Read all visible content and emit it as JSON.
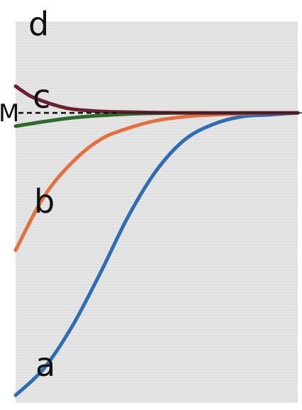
{
  "chart_data": {
    "type": "line",
    "x_range": [
      0,
      10
    ],
    "y_range": [
      0,
      10
    ],
    "asymptote": {
      "label": "M",
      "value": 7.6,
      "style": "dashed"
    },
    "series": [
      {
        "name": "a",
        "color": "#2f6db3",
        "points": [
          [
            0,
            0.2
          ],
          [
            1,
            0.9
          ],
          [
            2,
            2.0
          ],
          [
            3,
            3.4
          ],
          [
            4,
            4.9
          ],
          [
            5,
            6.1
          ],
          [
            6,
            6.9
          ],
          [
            7,
            7.3
          ],
          [
            8,
            7.5
          ],
          [
            9,
            7.55
          ],
          [
            10,
            7.6
          ]
        ]
      },
      {
        "name": "b",
        "color": "#e4703f",
        "points": [
          [
            0,
            4.0
          ],
          [
            1,
            5.4
          ],
          [
            2,
            6.3
          ],
          [
            3,
            6.9
          ],
          [
            4,
            7.2
          ],
          [
            5,
            7.4
          ],
          [
            6,
            7.5
          ],
          [
            7,
            7.55
          ],
          [
            8,
            7.58
          ],
          [
            9,
            7.6
          ],
          [
            10,
            7.6
          ]
        ]
      },
      {
        "name": "c",
        "color": "#2e6b2a",
        "points": [
          [
            0,
            7.25
          ],
          [
            1,
            7.37
          ],
          [
            2,
            7.47
          ],
          [
            3,
            7.53
          ],
          [
            4,
            7.57
          ],
          [
            5,
            7.59
          ],
          [
            6,
            7.6
          ],
          [
            8,
            7.6
          ],
          [
            10,
            7.6
          ]
        ]
      },
      {
        "name": "d",
        "color": "#6b1f2f",
        "points": [
          [
            0,
            8.3
          ],
          [
            0.5,
            8.05
          ],
          [
            1,
            7.9
          ],
          [
            1.5,
            7.78
          ],
          [
            2,
            7.7
          ],
          [
            3,
            7.64
          ],
          [
            4,
            7.62
          ],
          [
            6,
            7.6
          ],
          [
            10,
            7.6
          ]
        ]
      }
    ]
  }
}
